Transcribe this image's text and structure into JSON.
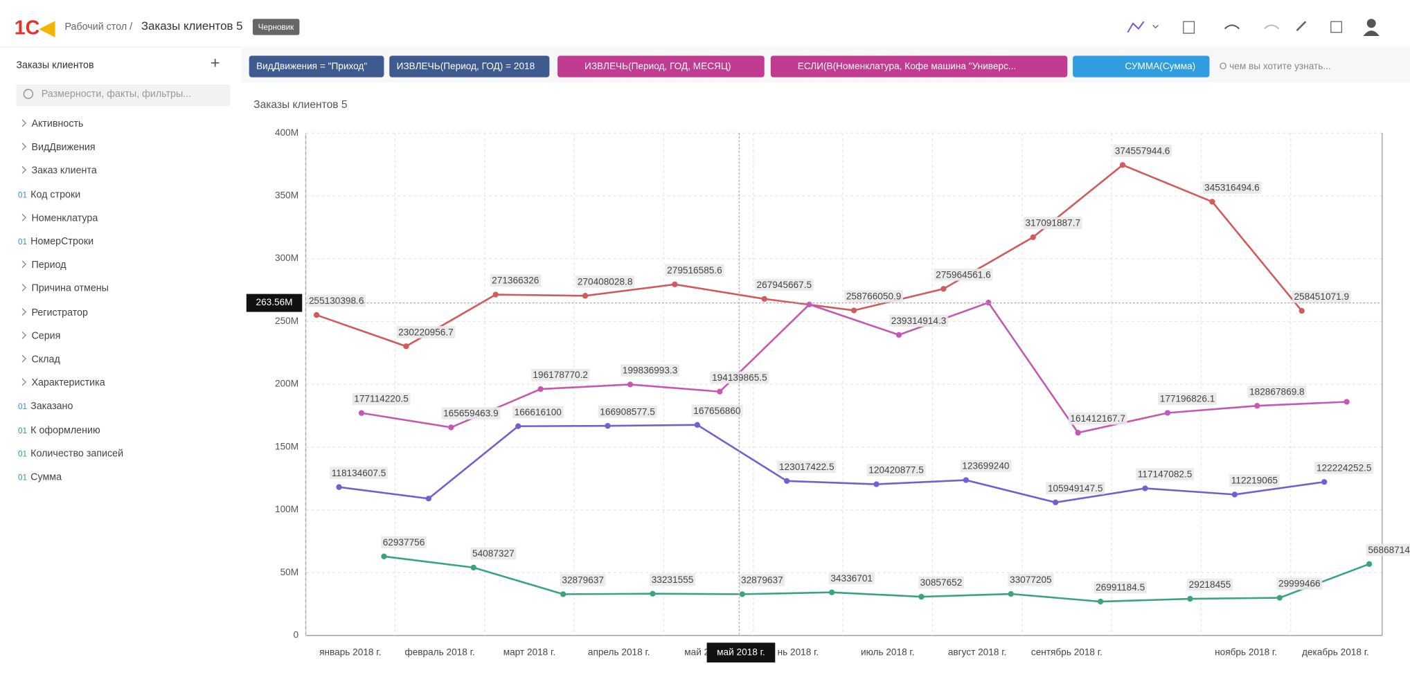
{
  "header": {
    "breadcrumb": "Рабочий стол /",
    "title": "Заказы клиентов 5",
    "badge": "Черновик"
  },
  "sidebar": {
    "title": "Заказы клиентов",
    "search": "Размерности, факты, фильтры...",
    "items": [
      {
        "label": "Активность"
      },
      {
        "label": "ВидДвижения"
      },
      {
        "label": "Заказ клиента"
      },
      {
        "badge": "01",
        "label": "Код строки"
      },
      {
        "label": "Номенклатура"
      },
      {
        "badge": "01",
        "label": "НомерСтроки"
      },
      {
        "label": "Период"
      },
      {
        "label": "Причина отмены"
      },
      {
        "label": "Регистратор"
      },
      {
        "label": "Серия"
      },
      {
        "label": "Склад"
      },
      {
        "label": "Характеристика"
      },
      {
        "badge": "01",
        "label": "Заказано"
      },
      {
        "badge": "01",
        "label": "К оформлению"
      },
      {
        "badge": "01",
        "label": "Количество записей"
      },
      {
        "badge": "01",
        "label": "Сумма"
      }
    ]
  },
  "filters": [
    {
      "text": "ВидДвижения = \"Приход\"",
      "color": "#3e5a8e"
    },
    {
      "text": "ИЗВЛЕЧЬ(Период, ГОД) = 2018",
      "color": "#3e5a8e"
    },
    {
      "text": "ИЗВЛЕЧЬ(Период, ГОД, МЕСЯЦ)",
      "color": "#c13b90"
    },
    {
      "text": "ЕСЛИ(В(Номенклатура, Кофе машина \"Универс...",
      "color": "#c13b90"
    },
    {
      "text": "СУММА(Сумма)",
      "color": "#2f9de0"
    }
  ],
  "query_placeholder": "О чем вы хотите узнать...",
  "chart_data": {
    "type": "line",
    "title": "Заказы клиентов 5",
    "categories": [
      "январь 2018 г.",
      "февраль 2018 г.",
      "март 2018 г.",
      "апрель 2018 г.",
      "май 2018 г.",
      "нь 2018 г.",
      "июль 2018 г.",
      "август 2018 г.",
      "сентябрь 2018 г.",
      null,
      "ноябрь 2018 г.",
      "декабрь 2018 г."
    ],
    "series": [
      {
        "color": "#d35a5a",
        "values": [
          255130398.6,
          230220956.7,
          271366326,
          270408028.8,
          279516585.6,
          267945667.5,
          258766050.9,
          275964561.6,
          317091887.7,
          374557944.6,
          345316494.6,
          258451071.9
        ],
        "value_labels": [
          "255130398.6",
          "230220956.7",
          "271366326",
          "270408028.8",
          "279516585.6",
          "267945667.5",
          "258766050.9",
          "275964561.6",
          "317091887.7",
          "374557944.6",
          "345316494.6",
          "258451071.9"
        ]
      },
      {
        "color": "#7060d0",
        "values": [
          118134607.5,
          109000000,
          166616100,
          166908577.5,
          167656860,
          123017422.5,
          120420877.5,
          123699240,
          105949147.5,
          117147082.5,
          112219065,
          122224252.5
        ],
        "value_labels": [
          "118134607.5",
          null,
          "166616100",
          "166908577.5",
          "167656860",
          "123017422.5",
          "120420877.5",
          "123699240",
          "105949147.5",
          "117147082.5",
          "112219065",
          "122224252.5"
        ]
      },
      {
        "color": "#c558b2",
        "values": [
          177114220.5,
          165659463.9,
          196178770.2,
          199836993.3,
          194139865.5,
          263560000,
          239314914.3,
          265000000,
          161412167.7,
          177196826.1,
          182867869.8,
          186000000
        ],
        "value_labels": [
          "177114220.5",
          "165659463.9",
          "196178770.2",
          "199836993.3",
          "194139865.5",
          null,
          "239314914.3",
          null,
          "161412167.7",
          "177196826.1",
          "182867869.8",
          null
        ]
      },
      {
        "color": "#3aa57c",
        "values": [
          62937756,
          54087327,
          32879637,
          33231555,
          32879637,
          34336701,
          30857652,
          33077205,
          26991184.5,
          29218455,
          29999466,
          56868714
        ],
        "value_labels": [
          "62937756",
          "54087327",
          "32879637",
          "33231555",
          "32879637",
          "34336701",
          "30857652",
          "33077205",
          "26991184.5",
          "29218455",
          "29999466",
          "56868714"
        ]
      }
    ],
    "ylim": [
      0,
      400000000
    ],
    "yticks": [
      0,
      {
        "value": 50000000,
        "label": "50M"
      },
      {
        "value": 100000000,
        "label": "100M"
      },
      {
        "value": 150000000,
        "label": "150M"
      },
      {
        "value": 200000000,
        "label": "200M"
      },
      {
        "value": 250000000,
        "label": "250M"
      },
      {
        "value": 300000000,
        "label": "300M"
      },
      {
        "value": 350000000,
        "label": "350M"
      },
      {
        "value": 400000000,
        "label": "400M"
      }
    ],
    "grid": true,
    "crosshair": {
      "y_label": "263.56M",
      "x_label": "май 2018 г."
    }
  }
}
